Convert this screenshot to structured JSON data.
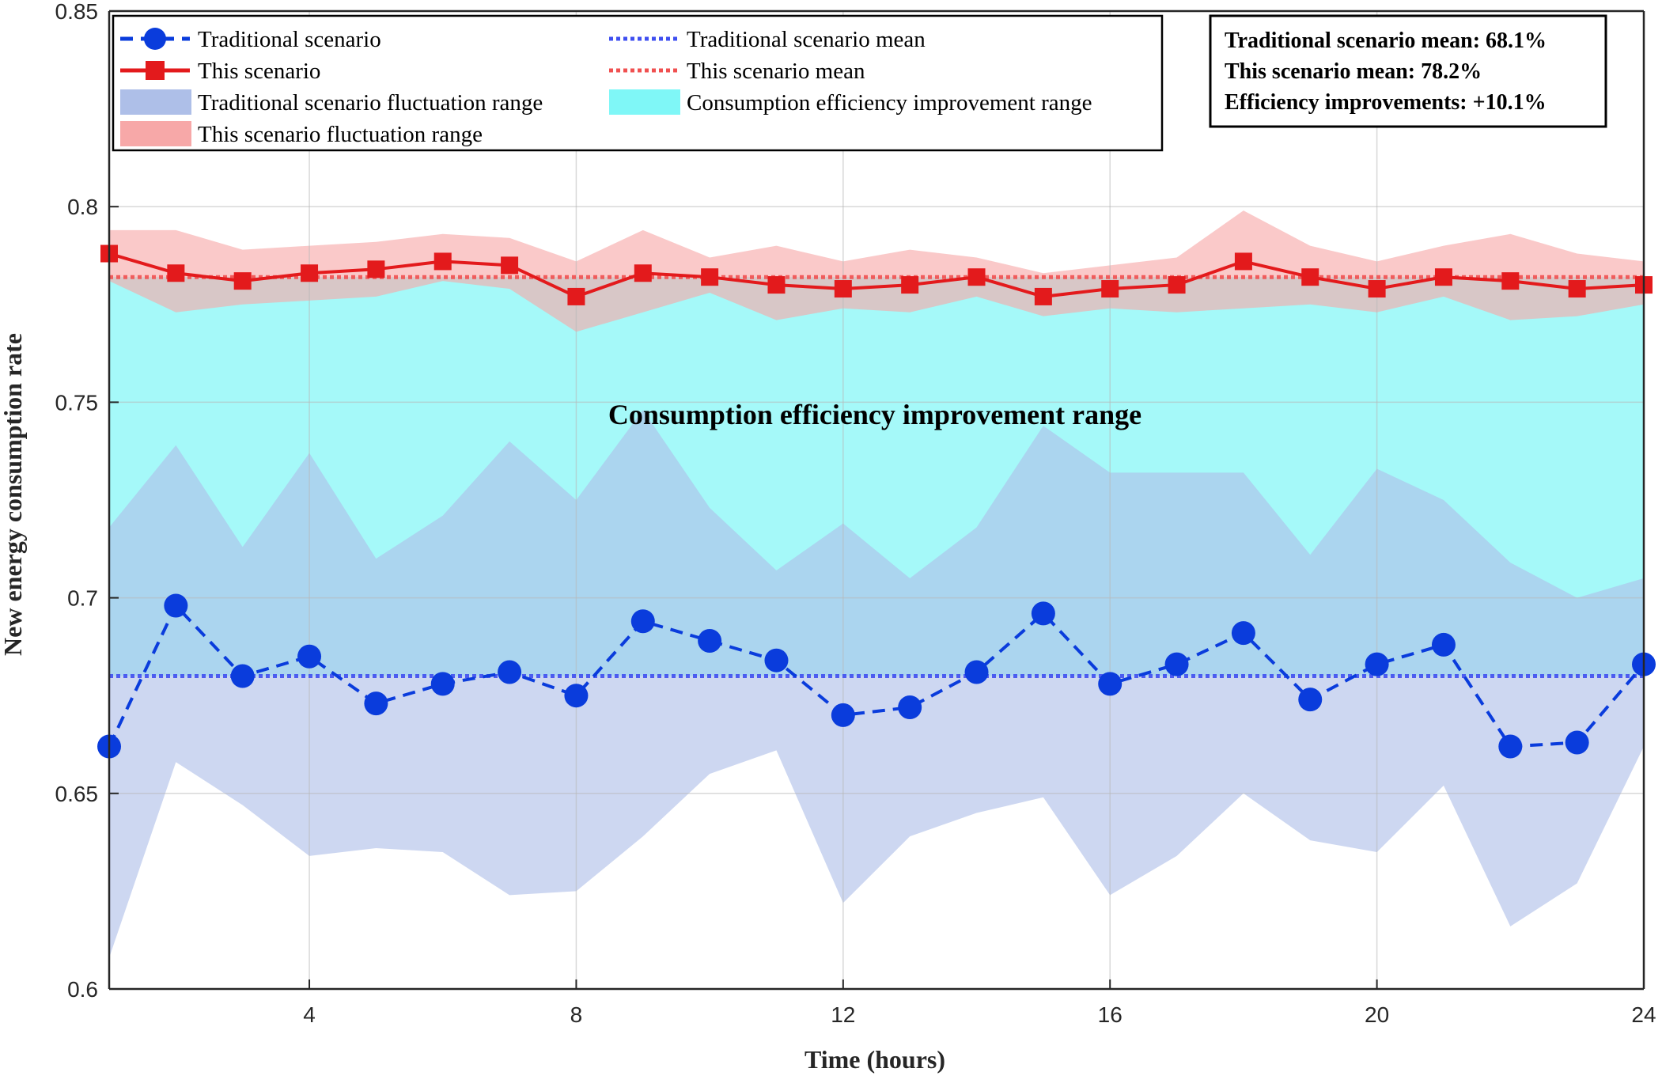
{
  "chart_data": {
    "type": "line",
    "title": "",
    "xlabel": "Time (hours)",
    "ylabel": "New energy consumption rate",
    "xlim": [
      1,
      24
    ],
    "ylim": [
      0.6,
      0.85
    ],
    "xticks": [
      4,
      8,
      12,
      16,
      20,
      24
    ],
    "yticks": [
      0.6,
      0.65,
      0.7,
      0.75,
      0.8,
      0.85
    ],
    "ytick_labels": [
      "0.6",
      "0.65",
      "0.7",
      "0.75",
      "0.8",
      "0.85"
    ],
    "grid": true,
    "x": [
      1,
      2,
      3,
      4,
      5,
      6,
      7,
      8,
      9,
      10,
      11,
      12,
      13,
      14,
      15,
      16,
      17,
      18,
      19,
      20,
      21,
      22,
      23,
      24
    ],
    "series": [
      {
        "name": "Traditional scenario",
        "style": "dashed-circle",
        "color": "#0a3cdc",
        "values": [
          0.662,
          0.698,
          0.68,
          0.685,
          0.673,
          0.678,
          0.681,
          0.675,
          0.694,
          0.689,
          0.684,
          0.67,
          0.672,
          0.681,
          0.696,
          0.678,
          0.683,
          0.691,
          0.674,
          0.683,
          0.688,
          0.662,
          0.663,
          0.683
        ]
      },
      {
        "name": "This scenario",
        "style": "solid-square",
        "color": "#e31a1c",
        "values": [
          0.788,
          0.783,
          0.781,
          0.783,
          0.784,
          0.786,
          0.785,
          0.777,
          0.783,
          0.782,
          0.78,
          0.779,
          0.78,
          0.782,
          0.777,
          0.779,
          0.78,
          0.786,
          0.782,
          0.779,
          0.782,
          0.781,
          0.779,
          0.78
        ]
      }
    ],
    "fluctuation_ranges": [
      {
        "name": "Traditional scenario fluctuation range",
        "color": "#aebfe8",
        "lower": [
          0.608,
          0.658,
          0.647,
          0.634,
          0.636,
          0.635,
          0.624,
          0.625,
          0.639,
          0.655,
          0.661,
          0.622,
          0.639,
          0.645,
          0.649,
          0.624,
          0.634,
          0.65,
          0.638,
          0.635,
          0.652,
          0.616,
          0.627,
          0.662
        ],
        "upper": [
          0.718,
          0.739,
          0.713,
          0.737,
          0.71,
          0.721,
          0.74,
          0.725,
          0.748,
          0.723,
          0.707,
          0.719,
          0.705,
          0.718,
          0.744,
          0.732,
          0.732,
          0.732,
          0.711,
          0.733,
          0.725,
          0.709,
          0.7,
          0.705
        ]
      },
      {
        "name": "This scenario fluctuation range",
        "color": "#f7a8a8",
        "lower": [
          0.781,
          0.773,
          0.775,
          0.776,
          0.777,
          0.781,
          0.779,
          0.768,
          0.773,
          0.778,
          0.771,
          0.774,
          0.773,
          0.777,
          0.772,
          0.774,
          0.773,
          0.774,
          0.775,
          0.773,
          0.777,
          0.771,
          0.772,
          0.775
        ],
        "upper": [
          0.794,
          0.794,
          0.789,
          0.79,
          0.791,
          0.793,
          0.792,
          0.786,
          0.794,
          0.787,
          0.79,
          0.786,
          0.789,
          0.787,
          0.783,
          0.785,
          0.787,
          0.799,
          0.79,
          0.786,
          0.79,
          0.793,
          0.788,
          0.786
        ]
      }
    ],
    "mean_lines": [
      {
        "name": "Traditional scenario mean",
        "value": 0.68,
        "color": "#3f4ff0"
      },
      {
        "name": "This scenario mean",
        "value": 0.782,
        "color": "#f05050"
      }
    ],
    "improvement_range": {
      "name": "Consumption efficiency improvement range",
      "color": "#7ff7f7",
      "lower": 0.68,
      "upper": 0.782
    },
    "annotation": "Consumption efficiency improvement range",
    "legend": {
      "placement": "top-left",
      "entries": [
        "Traditional scenario",
        "Traditional scenario mean",
        "This scenario",
        "This scenario mean",
        "Traditional scenario fluctuation range",
        "Consumption efficiency improvement range",
        "This scenario fluctuation range"
      ]
    },
    "stats_box": {
      "placement": "top-right",
      "lines": [
        "Traditional scenario mean: 68.1%",
        "This scenario mean: 78.2%",
        "Efficiency improvements: +10.1%"
      ]
    }
  }
}
